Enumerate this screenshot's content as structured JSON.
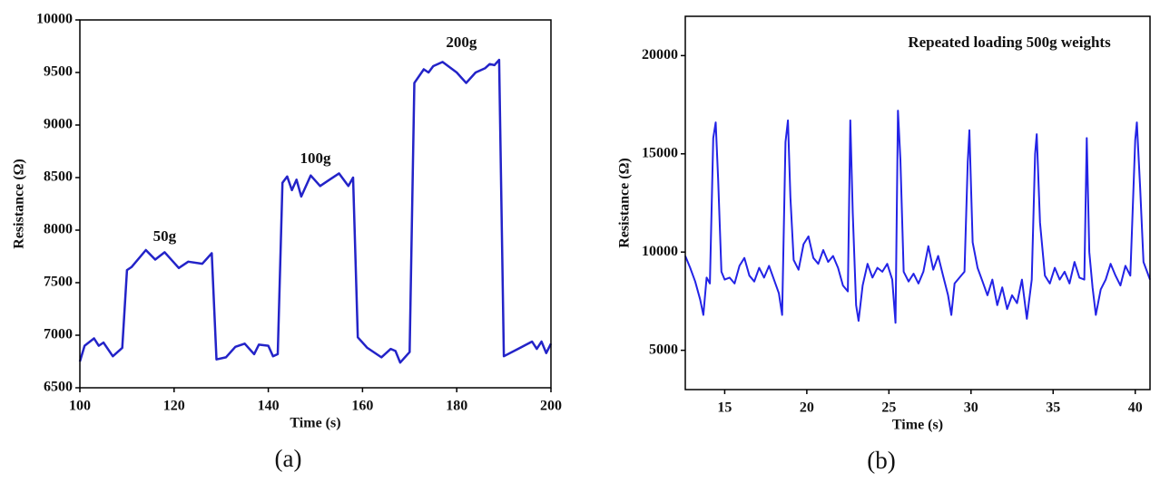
{
  "chart_data": [
    {
      "type": "line",
      "caption": "(a)",
      "xlabel": "Time (s)",
      "ylabel": "Resistance (Ω)",
      "annotations": [
        "50g",
        "100g",
        "200g"
      ],
      "xlim": [
        100,
        200
      ],
      "xticks": [
        100,
        120,
        140,
        160,
        180,
        200
      ],
      "ylim": [
        6500,
        10000
      ],
      "yticks": [
        6500,
        7000,
        7500,
        8000,
        8500,
        9000,
        9500,
        10000
      ],
      "series": [
        {
          "color": "#2323c8",
          "x": [
            100,
            101,
            103,
            104,
            105,
            107,
            109,
            110,
            111,
            114,
            116,
            118,
            121,
            123,
            126,
            128,
            129,
            131,
            133,
            135,
            137,
            138,
            140,
            141,
            142,
            143,
            144,
            145,
            146,
            147,
            149,
            151,
            153,
            155,
            157,
            158,
            159,
            161,
            164,
            166,
            167,
            168,
            170,
            171,
            173,
            174,
            175,
            177,
            180,
            182,
            184,
            186,
            187,
            188,
            189,
            190,
            193,
            196,
            197,
            198,
            199,
            200
          ],
          "values": [
            6750,
            6900,
            6970,
            6900,
            6930,
            6800,
            6880,
            7620,
            7650,
            7810,
            7720,
            7790,
            7640,
            7700,
            7680,
            7780,
            6770,
            6790,
            6890,
            6920,
            6820,
            6910,
            6900,
            6800,
            6820,
            8450,
            8510,
            8380,
            8480,
            8320,
            8520,
            8420,
            8480,
            8540,
            8420,
            8500,
            6980,
            6880,
            6790,
            6870,
            6850,
            6740,
            6840,
            9400,
            9530,
            9500,
            9560,
            9600,
            9500,
            9400,
            9500,
            9540,
            9580,
            9570,
            9620,
            6800,
            6870,
            6940,
            6870,
            6940,
            6830,
            6920
          ]
        }
      ]
    },
    {
      "type": "line",
      "caption": "(b)",
      "title": "Repeated loading 500g weights",
      "xlabel": "Time (s)",
      "ylabel": "Resistance (Ω)",
      "xlim": [
        12.6,
        40.9
      ],
      "xticks": [
        15,
        20,
        25,
        30,
        35,
        40
      ],
      "ylim": [
        3000,
        22000
      ],
      "yticks": [
        5000,
        10000,
        15000,
        20000
      ],
      "series": [
        {
          "color": "#2323e6",
          "x": [
            12.6,
            12.9,
            13.2,
            13.5,
            13.7,
            13.9,
            14.1,
            14.3,
            14.45,
            14.6,
            14.8,
            15.0,
            15.3,
            15.6,
            15.9,
            16.2,
            16.5,
            16.8,
            17.1,
            17.4,
            17.7,
            18.0,
            18.3,
            18.5,
            18.7,
            18.85,
            19.0,
            19.2,
            19.5,
            19.8,
            20.1,
            20.4,
            20.7,
            21.0,
            21.3,
            21.6,
            21.9,
            22.2,
            22.5,
            22.65,
            22.8,
            23.0,
            23.15,
            23.4,
            23.7,
            24.0,
            24.3,
            24.6,
            24.9,
            25.2,
            25.4,
            25.55,
            25.7,
            25.9,
            26.2,
            26.5,
            26.8,
            27.1,
            27.4,
            27.7,
            28.0,
            28.3,
            28.6,
            28.8,
            29.0,
            29.3,
            29.6,
            29.8,
            29.9,
            30.1,
            30.4,
            30.7,
            31.0,
            31.3,
            31.6,
            31.9,
            32.2,
            32.5,
            32.8,
            33.1,
            33.4,
            33.7,
            33.9,
            34.0,
            34.2,
            34.5,
            34.8,
            35.1,
            35.4,
            35.7,
            36.0,
            36.3,
            36.6,
            36.9,
            37.05,
            37.2,
            37.4,
            37.6,
            37.9,
            38.2,
            38.5,
            38.8,
            39.1,
            39.4,
            39.7,
            40.0,
            40.1,
            40.3,
            40.5,
            40.9
          ],
          "values": [
            9800,
            9200,
            8500,
            7600,
            6800,
            8700,
            8400,
            15800,
            16600,
            13700,
            9000,
            8600,
            8700,
            8400,
            9300,
            9700,
            8800,
            8500,
            9200,
            8700,
            9300,
            8600,
            7900,
            6800,
            15600,
            16700,
            12800,
            9600,
            9100,
            10400,
            10800,
            9700,
            9400,
            10100,
            9500,
            9800,
            9200,
            8300,
            8000,
            16700,
            12000,
            7300,
            6500,
            8300,
            9400,
            8700,
            9200,
            9000,
            9400,
            8600,
            6400,
            17200,
            14700,
            9000,
            8500,
            8900,
            8400,
            9000,
            10300,
            9100,
            9800,
            8800,
            7800,
            6800,
            8400,
            8700,
            9000,
            14600,
            16200,
            10500,
            9200,
            8500,
            7800,
            8600,
            7300,
            8200,
            7100,
            7800,
            7400,
            8600,
            6600,
            8600,
            15000,
            16000,
            11500,
            8800,
            8400,
            9200,
            8600,
            9000,
            8400,
            9500,
            8700,
            8600,
            15800,
            10000,
            8200,
            6800,
            8100,
            8600,
            9400,
            8800,
            8300,
            9300,
            8800,
            15700,
            16600,
            13300,
            9500,
            8600
          ]
        }
      ]
    }
  ]
}
